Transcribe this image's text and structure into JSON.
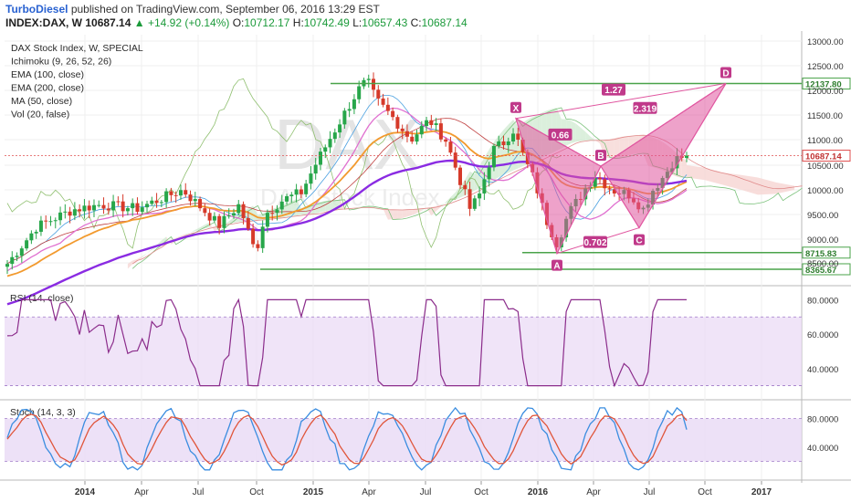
{
  "header": {
    "author": "TurboDiesel",
    "published": "published on TradingView.com, September 06, 2016 13:29 EST",
    "symbol": "INDEX:DAX, W",
    "last": "10687.14",
    "change": "▲ +14.92 (+0.14%)",
    "o_label": "O:",
    "o_value": "10712.17",
    "h_label": "H:",
    "h_value": "10742.49",
    "l_label": "L:",
    "l_value": "10657.43",
    "c_label": "C:",
    "c_value": "10687.14"
  },
  "indicators_legend": [
    "DAX Stock Index, W, SPECIAL",
    "Ichimoku (9, 26, 52, 26)",
    "EMA (100, close)",
    "EMA (200, close)",
    "MA (50, close)",
    "Vol (20, false)"
  ],
  "watermark": "DAX",
  "watermark_sub": "DAX Stock Index",
  "colors": {
    "up_candle": "#27a64a",
    "down_candle": "#d63a2a",
    "ema100": "#f29a2e",
    "ema200": "#8a2be2",
    "ma50": "#e070d0",
    "pattern_fill": "#e0559f",
    "support_line": "#4aa34a",
    "last_price_line": "#e05050",
    "rsi_line": "#8b2c8b",
    "stoch_k": "#3a8de0",
    "stoch_d": "#e0553a",
    "band_fill": "#e9d9f5"
  },
  "chart_data": [
    {
      "type": "candlestick",
      "title": "DAX Stock Index, W, SPECIAL",
      "y_axis": {
        "min": 8300,
        "max": 13000,
        "ticks": [
          8500,
          9000,
          9500,
          10000,
          10500,
          11000,
          11500,
          12000,
          12500,
          13000
        ]
      },
      "x_ticks": [
        "2014",
        "Apr",
        "Jul",
        "Oct",
        "2015",
        "Apr",
        "Jul",
        "Oct",
        "2016",
        "Apr",
        "Jul",
        "Oct",
        "2017"
      ],
      "price_labels": [
        {
          "label": "12137.80",
          "value": 12137.8,
          "color": "#4aa34a"
        },
        {
          "label": "10687.14",
          "value": 10687.14,
          "color": "#e05050"
        },
        {
          "label": "8715.83",
          "value": 8715.83,
          "color": "#4aa34a"
        },
        {
          "label": "8365.67",
          "value": 8365.67,
          "color": "#4aa34a"
        }
      ],
      "pattern_points": [
        {
          "name": "X",
          "value": 11430,
          "date": "2015-11"
        },
        {
          "name": "A",
          "value": 8700,
          "date": "2016-02"
        },
        {
          "name": "B",
          "value": 10480,
          "date": "2016-04"
        },
        {
          "name": "C",
          "value": 9230,
          "date": "2016-06"
        },
        {
          "name": "D",
          "value": 12140,
          "date": "2016-12"
        }
      ],
      "pattern_ratios": [
        "0.66",
        "0.702",
        "1.27",
        "2.319"
      ],
      "last_close": 10687.14
    },
    {
      "type": "line",
      "title": "RSI (14, close)",
      "y_axis": {
        "ticks": [
          "80.0000",
          "60.0000",
          "40.0000"
        ]
      }
    },
    {
      "type": "line",
      "title": "Stoch (14, 3, 3)",
      "y_axis": {
        "ticks": [
          "80.0000",
          "40.0000"
        ]
      }
    }
  ]
}
